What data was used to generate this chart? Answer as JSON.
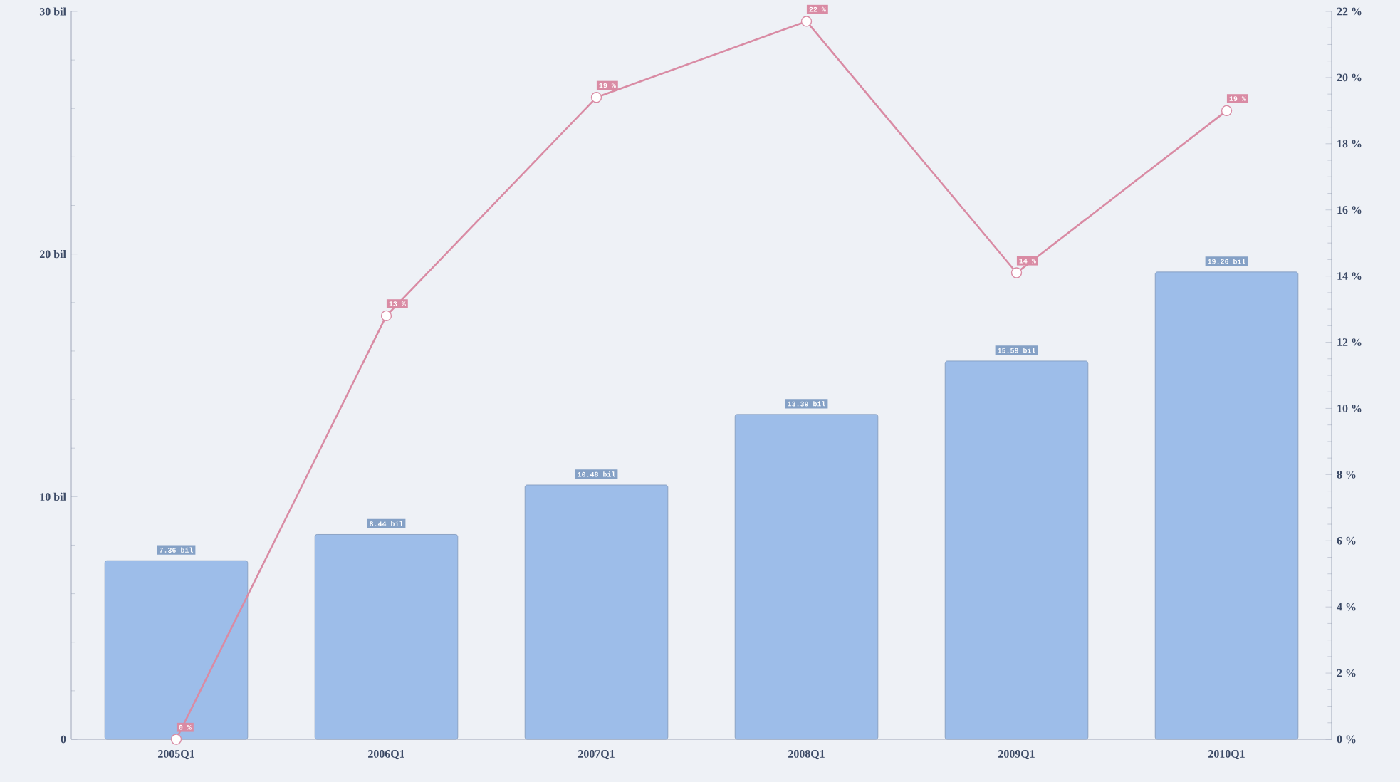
{
  "chart_data": {
    "type": "bar",
    "categories": [
      "2005Q1",
      "2006Q1",
      "2007Q1",
      "2008Q1",
      "2009Q1",
      "2010Q1"
    ],
    "ylim": [
      0,
      30
    ],
    "yticks": [
      0,
      {
        "value": 10,
        "label": "10 bil"
      },
      {
        "value": 20,
        "label": "20 bil"
      },
      {
        "value": 30,
        "label": "30 bil"
      }
    ],
    "y2lim": [
      0,
      22
    ],
    "y2ticks": [
      {
        "value": 0,
        "label": "0 %"
      },
      {
        "value": 2,
        "label": "2 %"
      },
      {
        "value": 4,
        "label": "4 %"
      },
      {
        "value": 6,
        "label": "6 %"
      },
      {
        "value": 8,
        "label": "8 %"
      },
      {
        "value": 10,
        "label": "10 %"
      },
      {
        "value": 12,
        "label": "12 %"
      },
      {
        "value": 14,
        "label": "14 %"
      },
      {
        "value": 16,
        "label": "16 %"
      },
      {
        "value": 18,
        "label": "18 %"
      },
      {
        "value": 20,
        "label": "20 %"
      },
      {
        "value": 22,
        "label": "22 %"
      }
    ],
    "series": [
      {
        "axis": "y",
        "color": "#9dbde9",
        "values": [
          7.36,
          8.44,
          10.48,
          13.39,
          15.59,
          19.26
        ],
        "value_labels": [
          "7.36 bil",
          "8.44 bil",
          "10.48 bil",
          "13.39 bil",
          "15.59 bil",
          "19.26 bil"
        ]
      },
      {
        "type": "line",
        "axis": "y2",
        "color": "#d98ba4",
        "marker": "circle",
        "values": [
          0,
          12.8,
          19.4,
          21.7,
          14.1,
          19.0
        ],
        "value_labels": [
          "0 %",
          "13 %",
          "19 %",
          "22 %",
          "14 %",
          "19 %"
        ]
      }
    ],
    "grid": false,
    "legend": false
  }
}
